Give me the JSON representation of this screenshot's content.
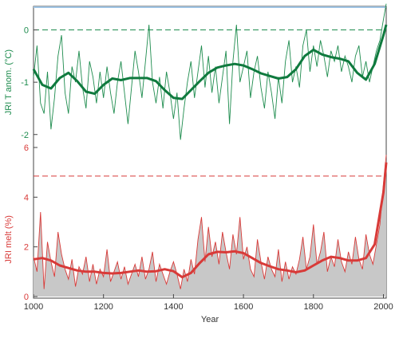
{
  "chart_data": [
    {
      "type": "line",
      "ylabel": "JRI T anom. (°C)",
      "xlim": [
        1000,
        2008
      ],
      "ylim": [
        -2.4,
        0.45
      ],
      "yticks": [
        "0",
        "-1",
        "-2"
      ],
      "ytick_values": [
        0,
        -1,
        -2
      ],
      "reference_line": 0,
      "color": "#1e8c4e",
      "series": [
        {
          "values_desc": "annual",
          "x": [
            1000,
            1010,
            1020,
            1030,
            1040,
            1050,
            1060,
            1070,
            1080,
            1090,
            1100,
            1110,
            1120,
            1130,
            1140,
            1150,
            1160,
            1170,
            1180,
            1190,
            1200,
            1210,
            1220,
            1230,
            1240,
            1250,
            1260,
            1270,
            1280,
            1290,
            1300,
            1310,
            1320,
            1330,
            1340,
            1350,
            1360,
            1370,
            1380,
            1390,
            1400,
            1410,
            1420,
            1430,
            1440,
            1450,
            1460,
            1470,
            1480,
            1490,
            1500,
            1510,
            1520,
            1530,
            1540,
            1550,
            1560,
            1570,
            1580,
            1590,
            1600,
            1610,
            1620,
            1630,
            1640,
            1650,
            1660,
            1670,
            1680,
            1690,
            1700,
            1710,
            1720,
            1730,
            1740,
            1750,
            1760,
            1770,
            1780,
            1790,
            1800,
            1810,
            1820,
            1830,
            1840,
            1850,
            1860,
            1870,
            1880,
            1890,
            1900,
            1910,
            1920,
            1930,
            1940,
            1950,
            1960,
            1970,
            1980,
            1990,
            2000,
            2008
          ],
          "y": [
            -0.9,
            -0.3,
            -1.4,
            -1.6,
            -0.8,
            -1.9,
            -1.3,
            -0.5,
            -0.1,
            -1.2,
            -1.6,
            -0.7,
            -1.0,
            -0.4,
            -1.1,
            -1.5,
            -0.6,
            -0.9,
            -1.4,
            -0.8,
            -1.3,
            -0.7,
            -1.2,
            -1.6,
            -1.0,
            -0.6,
            -1.2,
            -1.8,
            -1.1,
            -0.4,
            -0.8,
            -1.3,
            -0.6,
            0.1,
            -1.0,
            -1.4,
            -0.9,
            -1.5,
            -0.8,
            -1.2,
            -1.7,
            -1.2,
            -2.1,
            -1.5,
            -1.0,
            -0.6,
            -1.3,
            -0.8,
            -0.3,
            -1.1,
            -0.5,
            -1.2,
            -0.7,
            -1.4,
            -0.9,
            -0.4,
            -1.8,
            -0.6,
            0.1,
            -1.0,
            -0.7,
            -0.4,
            -1.3,
            -0.8,
            -0.5,
            -1.1,
            -1.5,
            -0.8,
            -1.2,
            -1.7,
            -0.9,
            -1.4,
            -0.6,
            -0.2,
            -1.0,
            -0.7,
            -1.1,
            -0.3,
            0.0,
            -0.8,
            -0.3,
            -0.7,
            -0.2,
            -0.5,
            -0.9,
            -0.4,
            -0.6,
            -0.3,
            -0.8,
            -0.5,
            -0.7,
            -1.0,
            -0.5,
            -0.3,
            -0.9,
            -0.6,
            -1.0,
            -0.7,
            -0.4,
            -0.2,
            0.2,
            0.5
          ]
        },
        {
          "values_desc": "smoothed",
          "x": [
            1000,
            1025,
            1050,
            1075,
            1100,
            1125,
            1150,
            1175,
            1200,
            1225,
            1250,
            1275,
            1300,
            1325,
            1350,
            1375,
            1400,
            1425,
            1450,
            1475,
            1500,
            1525,
            1550,
            1575,
            1600,
            1625,
            1650,
            1675,
            1700,
            1725,
            1750,
            1775,
            1800,
            1825,
            1850,
            1875,
            1900,
            1925,
            1950,
            1975,
            2000,
            2008
          ],
          "y": [
            -0.75,
            -1.05,
            -1.12,
            -0.92,
            -0.82,
            -0.98,
            -1.18,
            -1.22,
            -1.05,
            -0.93,
            -0.96,
            -0.92,
            -0.92,
            -0.92,
            -0.98,
            -1.15,
            -1.3,
            -1.32,
            -1.15,
            -0.98,
            -0.82,
            -0.72,
            -0.68,
            -0.65,
            -0.68,
            -0.75,
            -0.83,
            -0.88,
            -0.93,
            -0.9,
            -0.75,
            -0.5,
            -0.38,
            -0.47,
            -0.52,
            -0.55,
            -0.6,
            -0.82,
            -0.95,
            -0.65,
            -0.1,
            0.1
          ]
        }
      ]
    },
    {
      "type": "area",
      "xlabel": "Year",
      "ylabel": "JRI melt (%)",
      "xlim": [
        1000,
        2008
      ],
      "ylim": [
        0,
        6
      ],
      "xticks": [
        "1000",
        "1200",
        "1400",
        "1600",
        "1800",
        "2000"
      ],
      "xtick_values": [
        1000,
        1200,
        1400,
        1600,
        1800,
        2000
      ],
      "yticks": [
        "0",
        "2",
        "4",
        "6"
      ],
      "ytick_values": [
        0,
        2,
        4,
        6
      ],
      "reference_line": 4.85,
      "color": "#d83a38",
      "fill_color": "#c8c8c8",
      "series": [
        {
          "values_desc": "annual",
          "x": [
            1000,
            1010,
            1020,
            1030,
            1040,
            1050,
            1060,
            1070,
            1080,
            1090,
            1100,
            1110,
            1120,
            1130,
            1140,
            1150,
            1160,
            1170,
            1180,
            1190,
            1200,
            1210,
            1220,
            1230,
            1240,
            1250,
            1260,
            1270,
            1280,
            1290,
            1300,
            1310,
            1320,
            1330,
            1340,
            1350,
            1360,
            1370,
            1380,
            1390,
            1400,
            1410,
            1420,
            1430,
            1440,
            1450,
            1460,
            1470,
            1480,
            1490,
            1500,
            1510,
            1520,
            1530,
            1540,
            1550,
            1560,
            1570,
            1580,
            1590,
            1600,
            1610,
            1620,
            1630,
            1640,
            1650,
            1660,
            1670,
            1680,
            1690,
            1700,
            1710,
            1720,
            1730,
            1740,
            1750,
            1760,
            1770,
            1780,
            1790,
            1800,
            1810,
            1820,
            1830,
            1840,
            1850,
            1860,
            1870,
            1880,
            1890,
            1900,
            1910,
            1920,
            1930,
            1940,
            1950,
            1960,
            1970,
            1980,
            1990,
            2000,
            2008
          ],
          "y": [
            1.6,
            1.0,
            3.4,
            0.3,
            2.2,
            1.4,
            0.8,
            2.6,
            1.7,
            1.1,
            0.7,
            1.5,
            0.4,
            1.2,
            0.9,
            1.6,
            0.6,
            1.3,
            0.5,
            1.1,
            0.8,
            1.9,
            0.6,
            1.0,
            1.4,
            0.7,
            1.2,
            0.5,
            0.9,
            1.3,
            0.8,
            1.6,
            0.7,
            1.1,
            1.8,
            0.6,
            1.3,
            0.9,
            0.5,
            1.0,
            1.4,
            0.9,
            0.3,
            1.1,
            0.6,
            1.5,
            0.9,
            2.3,
            3.2,
            1.4,
            2.8,
            1.6,
            2.2,
            1.3,
            2.6,
            1.8,
            1.1,
            2.5,
            1.7,
            3.2,
            1.5,
            2.0,
            1.1,
            0.8,
            2.3,
            1.4,
            0.7,
            1.6,
            1.1,
            0.8,
            1.9,
            0.6,
            1.4,
            0.7,
            1.2,
            0.9,
            1.5,
            2.4,
            1.1,
            1.6,
            2.9,
            1.3,
            1.8,
            2.6,
            1.0,
            1.6,
            1.2,
            2.3,
            1.4,
            1.0,
            1.8,
            1.3,
            2.4,
            1.5,
            1.1,
            2.5,
            1.7,
            1.3,
            2.1,
            2.9,
            4.5,
            5.7
          ]
        },
        {
          "values_desc": "smoothed",
          "x": [
            1000,
            1025,
            1050,
            1075,
            1100,
            1125,
            1150,
            1175,
            1200,
            1225,
            1250,
            1275,
            1300,
            1325,
            1350,
            1375,
            1400,
            1425,
            1450,
            1475,
            1500,
            1525,
            1550,
            1575,
            1600,
            1625,
            1650,
            1675,
            1700,
            1725,
            1750,
            1775,
            1800,
            1825,
            1850,
            1875,
            1900,
            1925,
            1950,
            1975,
            2000,
            2008
          ],
          "y": [
            1.5,
            1.55,
            1.45,
            1.25,
            1.15,
            1.05,
            1.0,
            1.0,
            0.95,
            0.93,
            0.95,
            1.0,
            1.05,
            1.0,
            1.02,
            1.1,
            1.02,
            0.78,
            0.95,
            1.35,
            1.7,
            1.8,
            1.78,
            1.82,
            1.75,
            1.55,
            1.35,
            1.22,
            1.1,
            1.05,
            0.98,
            1.05,
            1.25,
            1.45,
            1.6,
            1.55,
            1.45,
            1.45,
            1.55,
            2.1,
            4.2,
            5.4
          ]
        }
      ]
    }
  ]
}
